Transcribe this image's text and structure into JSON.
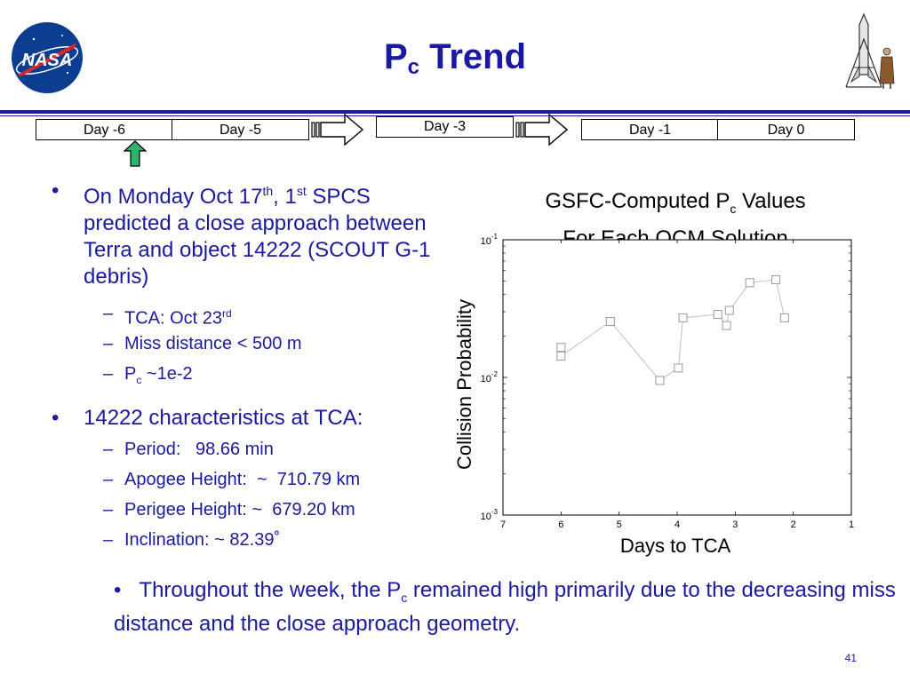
{
  "header": {
    "title_main": "P",
    "title_sub": "c",
    "title_rest": " Trend",
    "logo_text": "NASA"
  },
  "timeline": {
    "boxes": [
      "Day -6",
      "Day -5",
      "Day -3",
      "Day -1",
      "Day 0"
    ]
  },
  "bullets": {
    "b1": {
      "prefix": "On Monday Oct 17",
      "sup1": "th",
      "mid": ", 1",
      "sup2": "st",
      "rest": " SPCS predicted a close approach between Terra and object 14222 (SCOUT G-1 debris)"
    },
    "b1_subs": {
      "tca_prefix": "TCA: Oct 23",
      "tca_sup": "rd",
      "miss": "Miss distance < 500 m",
      "pc_main": "P",
      "pc_sub": "c",
      "pc_rest": " ~1e-2"
    },
    "b2": "14222 characteristics at TCA:",
    "b2_subs": {
      "period": "Period:   98.66 min",
      "apogee": "Apogee Height:  ~  710.79 km",
      "perigee": "Perigee Height: ~  679.20 km",
      "incl": "Inclination: ~ 82.39˚"
    }
  },
  "bottom_note": {
    "prefix": "Throughout the week, the P",
    "sub": "c",
    "rest": " remained high primarily due to the decreasing miss distance and the close approach geometry."
  },
  "page_number": "41",
  "chart_data": {
    "type": "line",
    "title_line1_main": "GSFC-Computed P",
    "title_line1_sub": "c",
    "title_line1_rest": " Values",
    "title_line2": "For Each OCM Solution",
    "xlabel": "Days to TCA",
    "ylabel": "Collision Probability",
    "xlim": [
      7,
      1
    ],
    "ylim": [
      0.001,
      0.1
    ],
    "yscale": "log",
    "xticks": [
      7,
      6,
      5,
      4,
      3,
      2,
      1
    ],
    "yticks": [
      {
        "value": 0.1,
        "base": "10",
        "exp": "-1"
      },
      {
        "value": 0.01,
        "base": "10",
        "exp": "-2"
      },
      {
        "value": 0.001,
        "base": "10",
        "exp": "-3"
      }
    ],
    "grid": false,
    "marker": "square",
    "series": [
      {
        "x": [
          6.0,
          6.0,
          5.15,
          4.3,
          3.98,
          3.9,
          3.3,
          3.15,
          3.1,
          2.75,
          2.3,
          2.15
        ],
        "y": [
          0.0165,
          0.0143,
          0.0255,
          0.0095,
          0.0117,
          0.0271,
          0.0287,
          0.0238,
          0.0307,
          0.0488,
          0.0512,
          0.0271
        ]
      }
    ]
  }
}
